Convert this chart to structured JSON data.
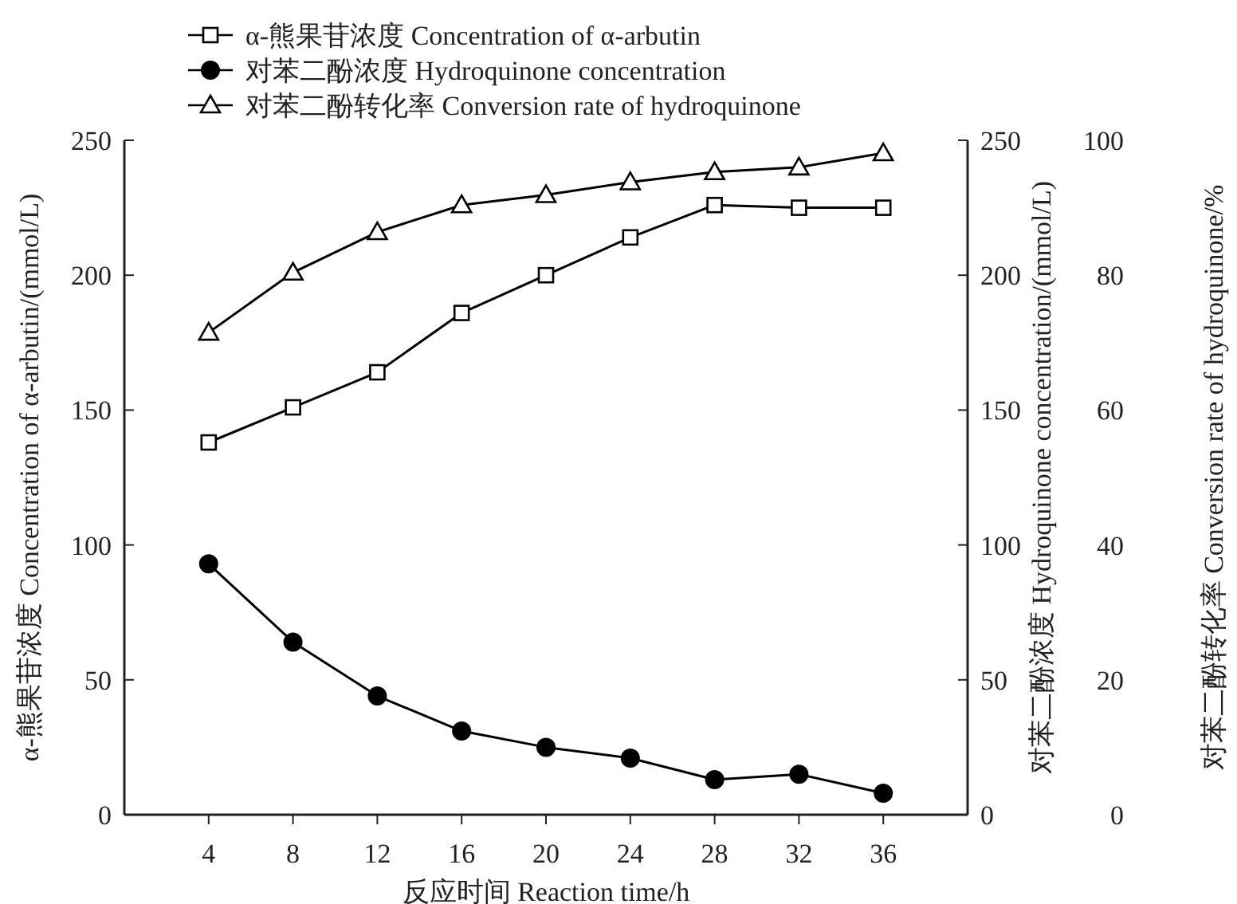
{
  "chart_data": {
    "type": "line",
    "xlabel": "反应时间 Reaction time/h",
    "ylabel": "α-熊果苷浓度 Concentration of α-arbutin/(mmol/L)",
    "y2label": "对苯二酚浓度 Hydroquinone concentration/(mmol/L)",
    "y3label": "对苯二酚转化率 Conversion rate of hydroquinone/%",
    "x": [
      4,
      8,
      12,
      16,
      20,
      24,
      28,
      32,
      36
    ],
    "xlim": [
      0,
      40
    ],
    "xticks": [
      4,
      8,
      12,
      16,
      20,
      24,
      28,
      32,
      36
    ],
    "ylim": [
      0,
      250
    ],
    "yticks": [
      0,
      50,
      100,
      150,
      200,
      250
    ],
    "y2lim": [
      0,
      250
    ],
    "y2ticks": [
      0,
      50,
      100,
      150,
      200,
      250
    ],
    "y3lim": [
      0,
      100
    ],
    "y3ticks": [
      0,
      20,
      40,
      60,
      80,
      100
    ],
    "legend": "top left",
    "grid": false,
    "series": [
      {
        "name": "α-熊果苷浓度 Concentration of α-arbutin",
        "color": "#000000",
        "marker": "square",
        "values": [
          138,
          151,
          164,
          186,
          200,
          214,
          226,
          225,
          225
        ]
      },
      {
        "name": "对苯二酚浓度 Hydroquinone concentration",
        "color": "#000000",
        "marker": "circle",
        "axis": "y2",
        "values": [
          93,
          64,
          44,
          31,
          25,
          21,
          13,
          15,
          8
        ]
      },
      {
        "name": "对苯二酚转化率 Conversion rate of hydroquinone",
        "color": "#000000",
        "marker": "triangle",
        "axis": "y3",
        "values": [
          71.5,
          80.4,
          86.4,
          90.4,
          91.9,
          93.8,
          95.3,
          96,
          98.1
        ]
      }
    ]
  }
}
